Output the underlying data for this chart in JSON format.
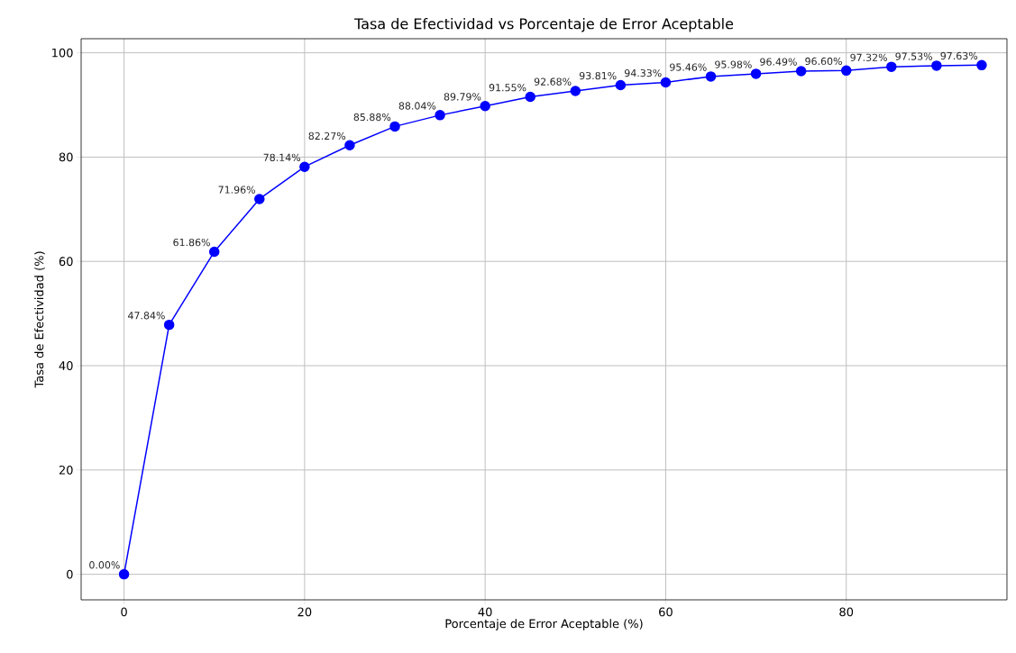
{
  "chart_data": {
    "type": "line",
    "title": "Tasa de Efectividad vs Porcentaje de Error Aceptable",
    "xlabel": "Porcentaje de Error Aceptable (%)",
    "ylabel": "Tasa de Efectividad (%)",
    "x": [
      0,
      5,
      10,
      15,
      20,
      25,
      30,
      35,
      40,
      45,
      50,
      55,
      60,
      65,
      70,
      75,
      80,
      85,
      90,
      95
    ],
    "values": [
      0.0,
      47.84,
      61.86,
      71.96,
      78.14,
      82.27,
      85.88,
      88.04,
      89.79,
      91.55,
      92.68,
      93.81,
      94.33,
      95.46,
      95.98,
      96.49,
      96.6,
      97.32,
      97.53,
      97.63
    ],
    "value_labels": [
      "0.00%",
      "47.84%",
      "61.86%",
      "71.96%",
      "78.14%",
      "82.27%",
      "85.88%",
      "88.04%",
      "89.79%",
      "91.55%",
      "92.68%",
      "93.81%",
      "94.33%",
      "95.46%",
      "95.98%",
      "96.49%",
      "96.60%",
      "97.32%",
      "97.53%",
      "97.63%"
    ],
    "color": "#0000ff",
    "marker": "circle",
    "line_style": "solid",
    "grid": true,
    "xlim": [
      -4.75,
      97.8
    ],
    "ylim": [
      -4.9,
      102.7
    ],
    "xticks": [
      0,
      20,
      40,
      60,
      80
    ],
    "yticks": [
      0,
      20,
      40,
      60,
      80,
      100
    ]
  }
}
